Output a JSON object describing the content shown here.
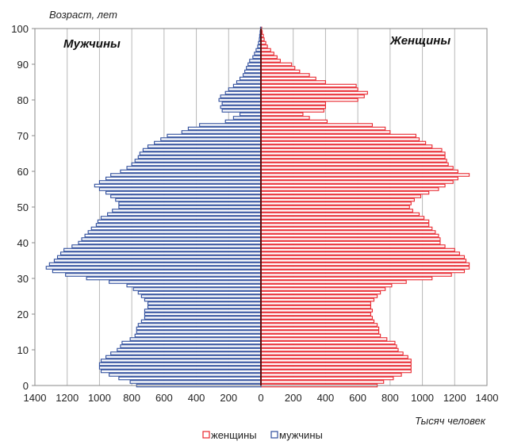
{
  "chart_data": {
    "type": "bar",
    "orientation": "horizontal",
    "subtype": "population-pyramid",
    "y_axis_title": "Возраст,  лет",
    "x_axis_title": "Тысяч человек",
    "left_group_label": "Мужчины",
    "right_group_label": "Женщины",
    "xlim": [
      -1400,
      1400
    ],
    "ylim": [
      0,
      100
    ],
    "x_ticks": [
      -1400,
      -1200,
      -1000,
      -800,
      -600,
      -400,
      -200,
      0,
      200,
      400,
      600,
      800,
      1000,
      1200,
      1400
    ],
    "x_tick_labels": [
      "1400",
      "1200",
      "1000",
      "800",
      "600",
      "400",
      "200",
      "0",
      "200",
      "400",
      "600",
      "800",
      "1000",
      "1200",
      "1400"
    ],
    "y_ticks": [
      0,
      10,
      20,
      30,
      40,
      50,
      60,
      70,
      80,
      90,
      100
    ],
    "y_tick_labels": [
      "0",
      "10",
      "20",
      "30",
      "40",
      "50",
      "60",
      "70",
      "80",
      "90",
      "100"
    ],
    "grid": "vertical",
    "legend_position": "bottom",
    "ages": [
      0,
      1,
      2,
      3,
      4,
      5,
      6,
      7,
      8,
      9,
      10,
      11,
      12,
      13,
      14,
      15,
      16,
      17,
      18,
      19,
      20,
      21,
      22,
      23,
      24,
      25,
      26,
      27,
      28,
      29,
      30,
      31,
      32,
      33,
      34,
      35,
      36,
      37,
      38,
      39,
      40,
      41,
      42,
      43,
      44,
      45,
      46,
      47,
      48,
      49,
      50,
      51,
      52,
      53,
      54,
      55,
      56,
      57,
      58,
      59,
      60,
      61,
      62,
      63,
      64,
      65,
      66,
      67,
      68,
      69,
      70,
      71,
      72,
      73,
      74,
      75,
      76,
      77,
      78,
      79,
      80,
      81,
      82,
      83,
      84,
      85,
      86,
      87,
      88,
      89,
      90,
      91,
      92,
      93,
      94,
      95,
      96,
      97,
      98,
      99,
      100
    ],
    "series": [
      {
        "name": "женщины",
        "color": "#e8262d",
        "values": [
          720,
          760,
          820,
          870,
          930,
          930,
          930,
          930,
          910,
          880,
          850,
          840,
          830,
          780,
          740,
          730,
          730,
          720,
          700,
          690,
          680,
          690,
          680,
          680,
          700,
          720,
          740,
          770,
          810,
          900,
          1060,
          1180,
          1260,
          1290,
          1290,
          1270,
          1260,
          1230,
          1200,
          1140,
          1110,
          1110,
          1100,
          1080,
          1060,
          1040,
          1040,
          1010,
          980,
          940,
          920,
          930,
          950,
          990,
          1040,
          1100,
          1140,
          1190,
          1220,
          1290,
          1220,
          1190,
          1160,
          1150,
          1140,
          1140,
          1120,
          1060,
          1020,
          980,
          960,
          800,
          770,
          690,
          410,
          300,
          260,
          390,
          400,
          400,
          600,
          640,
          660,
          600,
          590,
          400,
          340,
          300,
          240,
          210,
          190,
          120,
          100,
          80,
          60,
          40,
          30,
          20,
          15,
          8,
          5
        ]
      },
      {
        "name": "мужчины",
        "color": "#2e4d9c",
        "values": [
          770,
          810,
          880,
          940,
          990,
          1000,
          1000,
          990,
          960,
          930,
          890,
          870,
          860,
          810,
          780,
          770,
          770,
          760,
          740,
          720,
          720,
          720,
          700,
          700,
          720,
          740,
          760,
          790,
          830,
          940,
          1080,
          1210,
          1290,
          1330,
          1310,
          1280,
          1260,
          1240,
          1220,
          1170,
          1130,
          1110,
          1090,
          1070,
          1050,
          1020,
          1010,
          990,
          950,
          920,
          880,
          880,
          900,
          930,
          960,
          1000,
          1030,
          1000,
          960,
          930,
          870,
          830,
          800,
          780,
          760,
          750,
          730,
          700,
          660,
          620,
          580,
          490,
          450,
          380,
          220,
          170,
          130,
          240,
          250,
          240,
          260,
          250,
          220,
          200,
          170,
          150,
          130,
          110,
          100,
          90,
          80,
          70,
          50,
          40,
          30,
          20,
          15,
          10,
          8,
          5,
          3
        ]
      }
    ]
  }
}
